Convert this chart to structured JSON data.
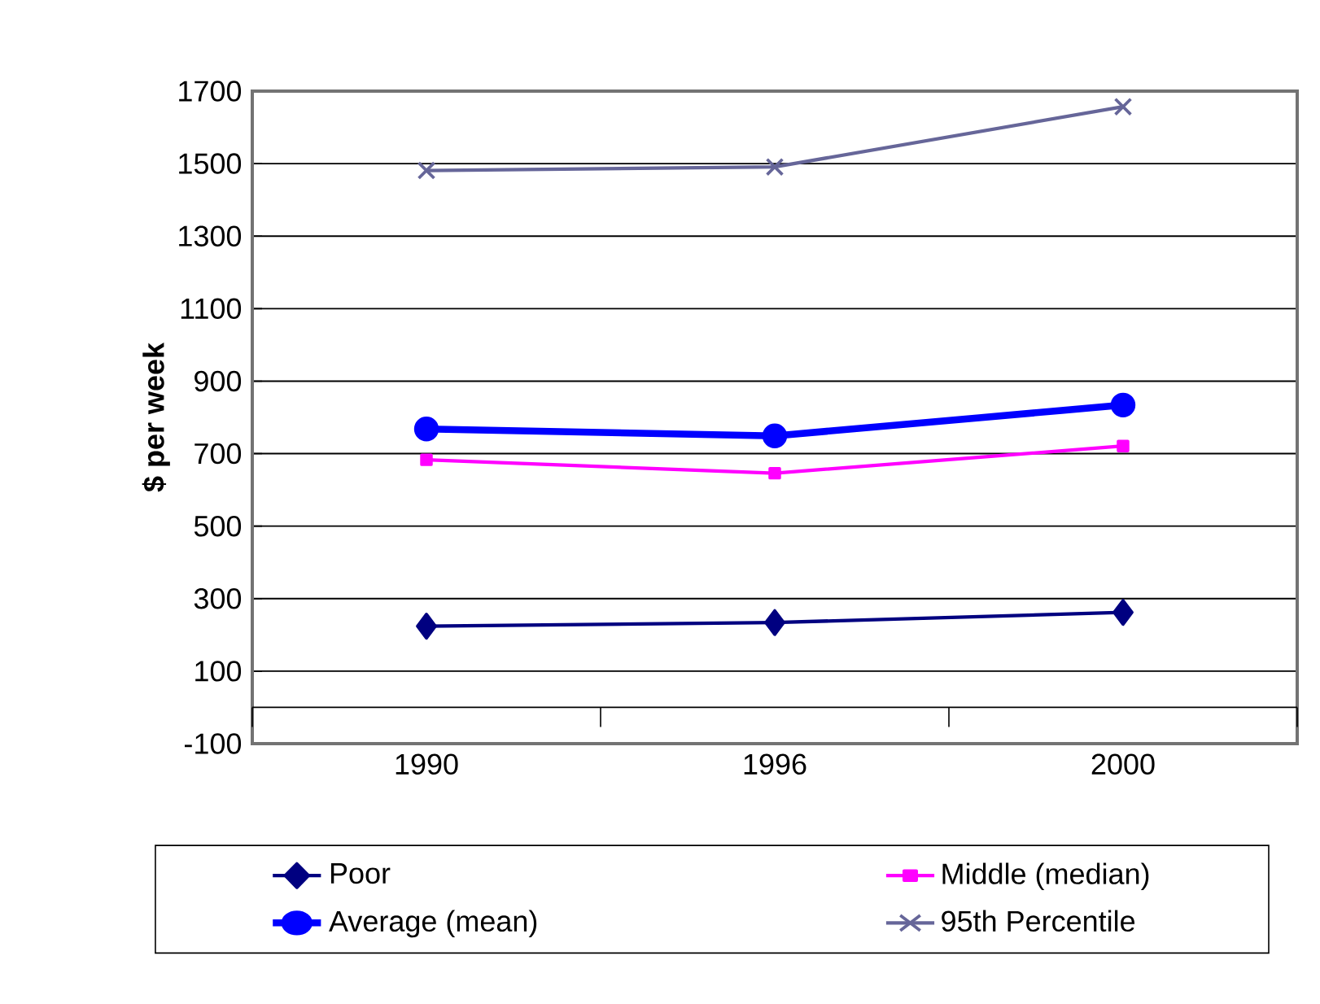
{
  "chart_data": {
    "type": "line",
    "ylabel": "$ per week",
    "categories": [
      "1990",
      "1996",
      "2000"
    ],
    "series": [
      {
        "name": "Poor",
        "color": "#000080",
        "marker": "diamond",
        "values": [
          224,
          234,
          262
        ]
      },
      {
        "name": "Middle (median)",
        "color": "#ff00ff",
        "marker": "square",
        "values": [
          683,
          646,
          721
        ]
      },
      {
        "name": "Average (mean)",
        "color": "#0000ff",
        "marker": "circle",
        "values": [
          768,
          749,
          834
        ]
      },
      {
        "name": "95th Percentile",
        "color": "#666699",
        "marker": "cross",
        "values": [
          1481,
          1491,
          1657
        ]
      }
    ],
    "ylim": [
      -100,
      1700
    ],
    "yticks": [
      -100,
      100,
      300,
      500,
      700,
      900,
      1100,
      1300,
      1500,
      1700
    ],
    "ref_lines": [
      {
        "axis": "y",
        "value": 0,
        "color": "#000000"
      }
    ],
    "grid": "y",
    "legend": "bottom"
  }
}
